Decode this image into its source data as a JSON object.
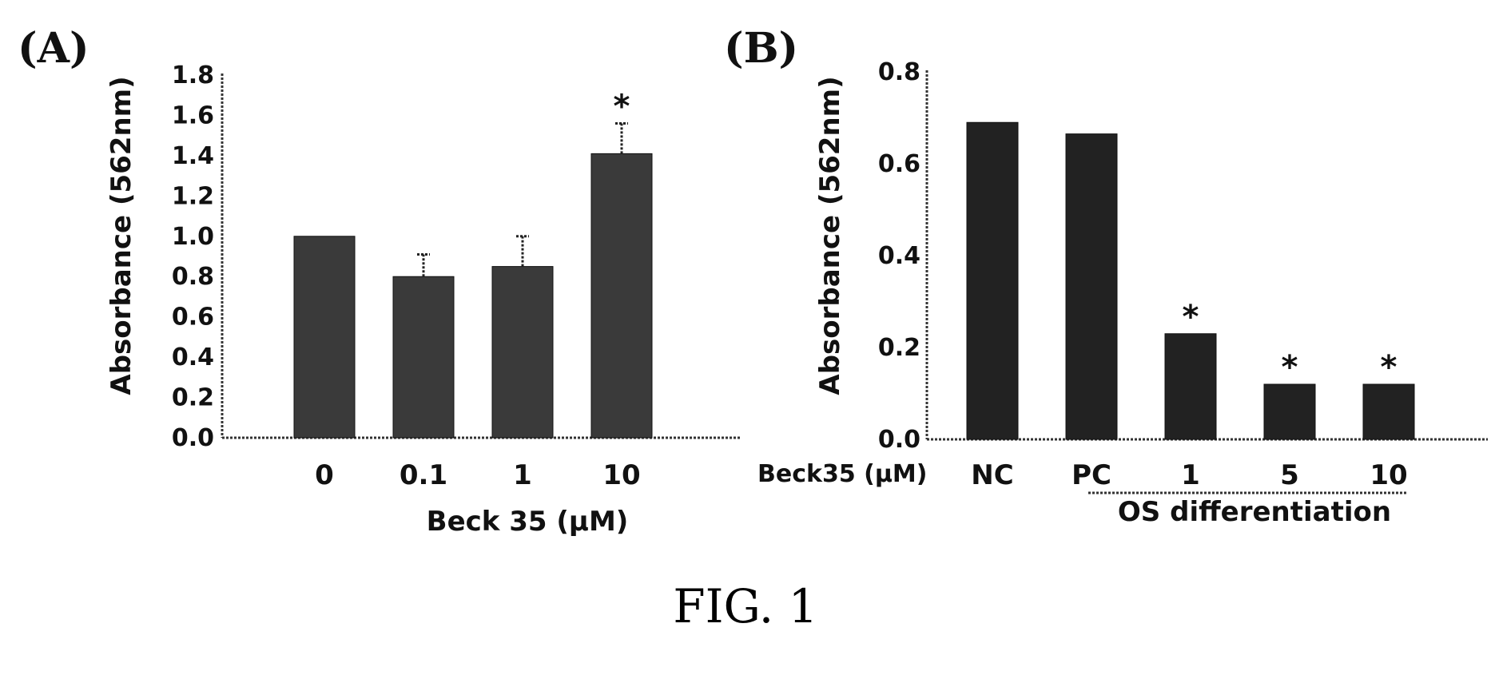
{
  "caption": "FIG. 1",
  "chart_data": [
    {
      "type": "bar",
      "panel": "(A)",
      "ylabel": "Absorbance (562nm)",
      "xlabel": "Beck 35 (µM)",
      "ylim": [
        0,
        1.8
      ],
      "yticks": [
        "0.0",
        "0.2",
        "0.4",
        "0.6",
        "0.8",
        "1.0",
        "1.2",
        "1.4",
        "1.6",
        "1.8"
      ],
      "categories": [
        "0",
        "0.1",
        "1",
        "10"
      ],
      "values": [
        1.0,
        0.8,
        0.85,
        1.41
      ],
      "errors": [
        0,
        0.11,
        0.15,
        0.15
      ],
      "significance": [
        "",
        "",
        "",
        "*"
      ],
      "bar_color": "#3a3a3a"
    },
    {
      "type": "bar",
      "panel": "(B)",
      "ylabel": "Absorbance (562nm)",
      "ylim": [
        0,
        0.8
      ],
      "yticks": [
        "0.0",
        "0.2",
        "0.4",
        "0.6",
        "0.8"
      ],
      "row_label": "Beck35 (µM)",
      "categories": [
        "NC",
        "PC",
        "1",
        "5",
        "10"
      ],
      "values": [
        0.69,
        0.665,
        0.23,
        0.12,
        0.12
      ],
      "significance": [
        "",
        "",
        "*",
        "*",
        "*"
      ],
      "group_label": "OS differentiation",
      "bar_color": "#222222"
    }
  ]
}
